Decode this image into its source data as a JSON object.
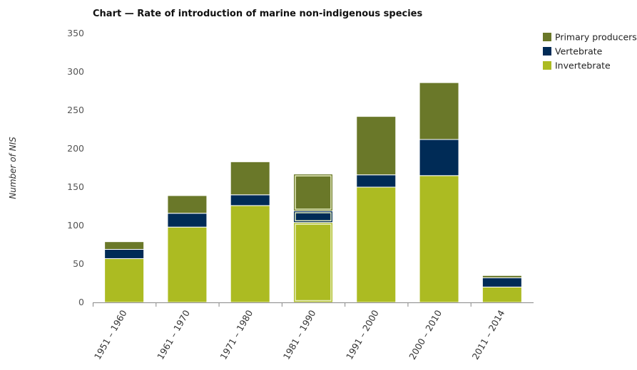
{
  "chart_data": {
    "type": "bar",
    "stacked": true,
    "title": "Chart — Rate of introduction of marine non-indigenous species",
    "ylabel": "Number of NIS",
    "xlabel": "",
    "ylim": [
      0,
      350
    ],
    "yticks": [
      0,
      50,
      100,
      150,
      200,
      250,
      300,
      350
    ],
    "grid": false,
    "legend_position": "top-right",
    "categories": [
      "1951 – 1960",
      "1961 – 1970",
      "1971 – 1980",
      "1981 – 1990",
      "1991 – 2000",
      "2000 – 2010",
      "2011 – 2014"
    ],
    "highlighted_category": "1981 – 1990",
    "series": [
      {
        "name": "Invertebrate",
        "color": "#acbb22",
        "values": [
          57,
          98,
          126,
          104,
          150,
          165,
          20
        ]
      },
      {
        "name": "Vertebrate",
        "color": "#002b56",
        "values": [
          12,
          18,
          14,
          15,
          16,
          47,
          12
        ]
      },
      {
        "name": "Primary producers",
        "color": "#6a7829",
        "values": [
          10,
          23,
          43,
          48,
          76,
          74,
          3
        ]
      }
    ],
    "legend_order": [
      "Primary producers",
      "Vertebrate",
      "Invertebrate"
    ]
  }
}
